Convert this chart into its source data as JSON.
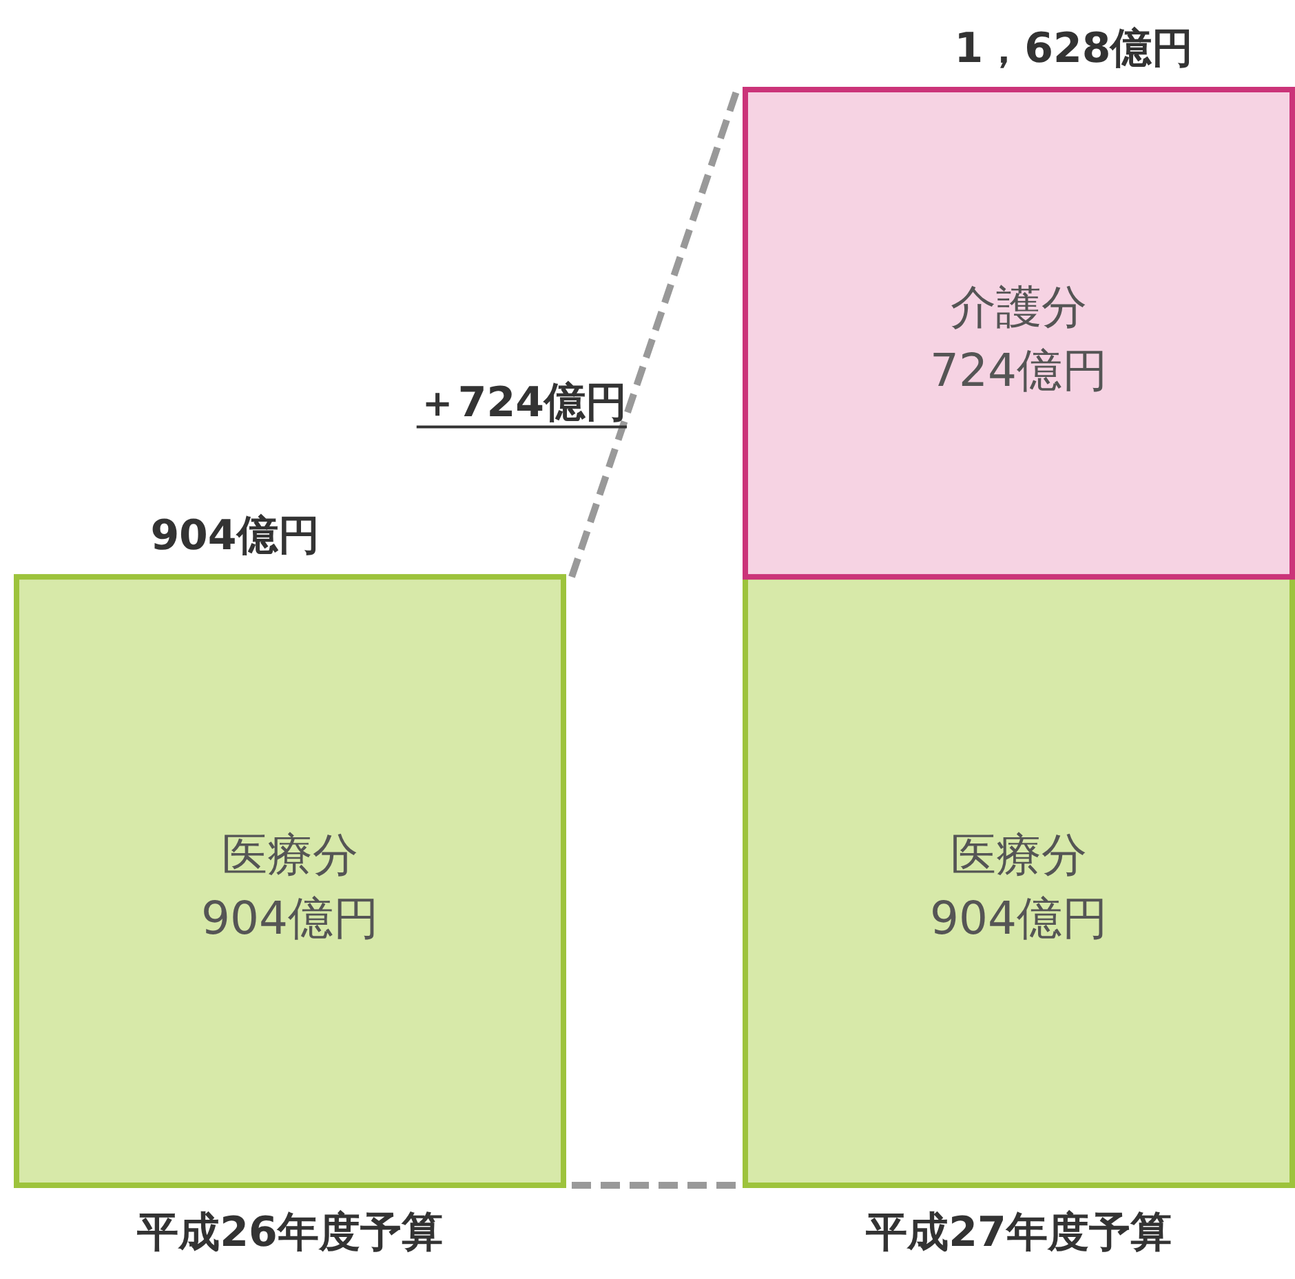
{
  "chart_data": {
    "type": "bar",
    "stacked": true,
    "categories": [
      "平成26年度予算",
      "平成27年度予算"
    ],
    "series": [
      {
        "name": "医療分",
        "color": "#d7e9a9",
        "values": [
          904,
          904
        ],
        "value_labels": [
          "904億円",
          "904億円"
        ]
      },
      {
        "name": "介護分",
        "color": "#f6d3e3",
        "values": [
          null,
          724
        ],
        "value_labels": [
          null,
          "724億円"
        ]
      }
    ],
    "totals": [
      "904億円",
      "1，628億円"
    ],
    "annotations": [
      "＋724億円"
    ]
  }
}
